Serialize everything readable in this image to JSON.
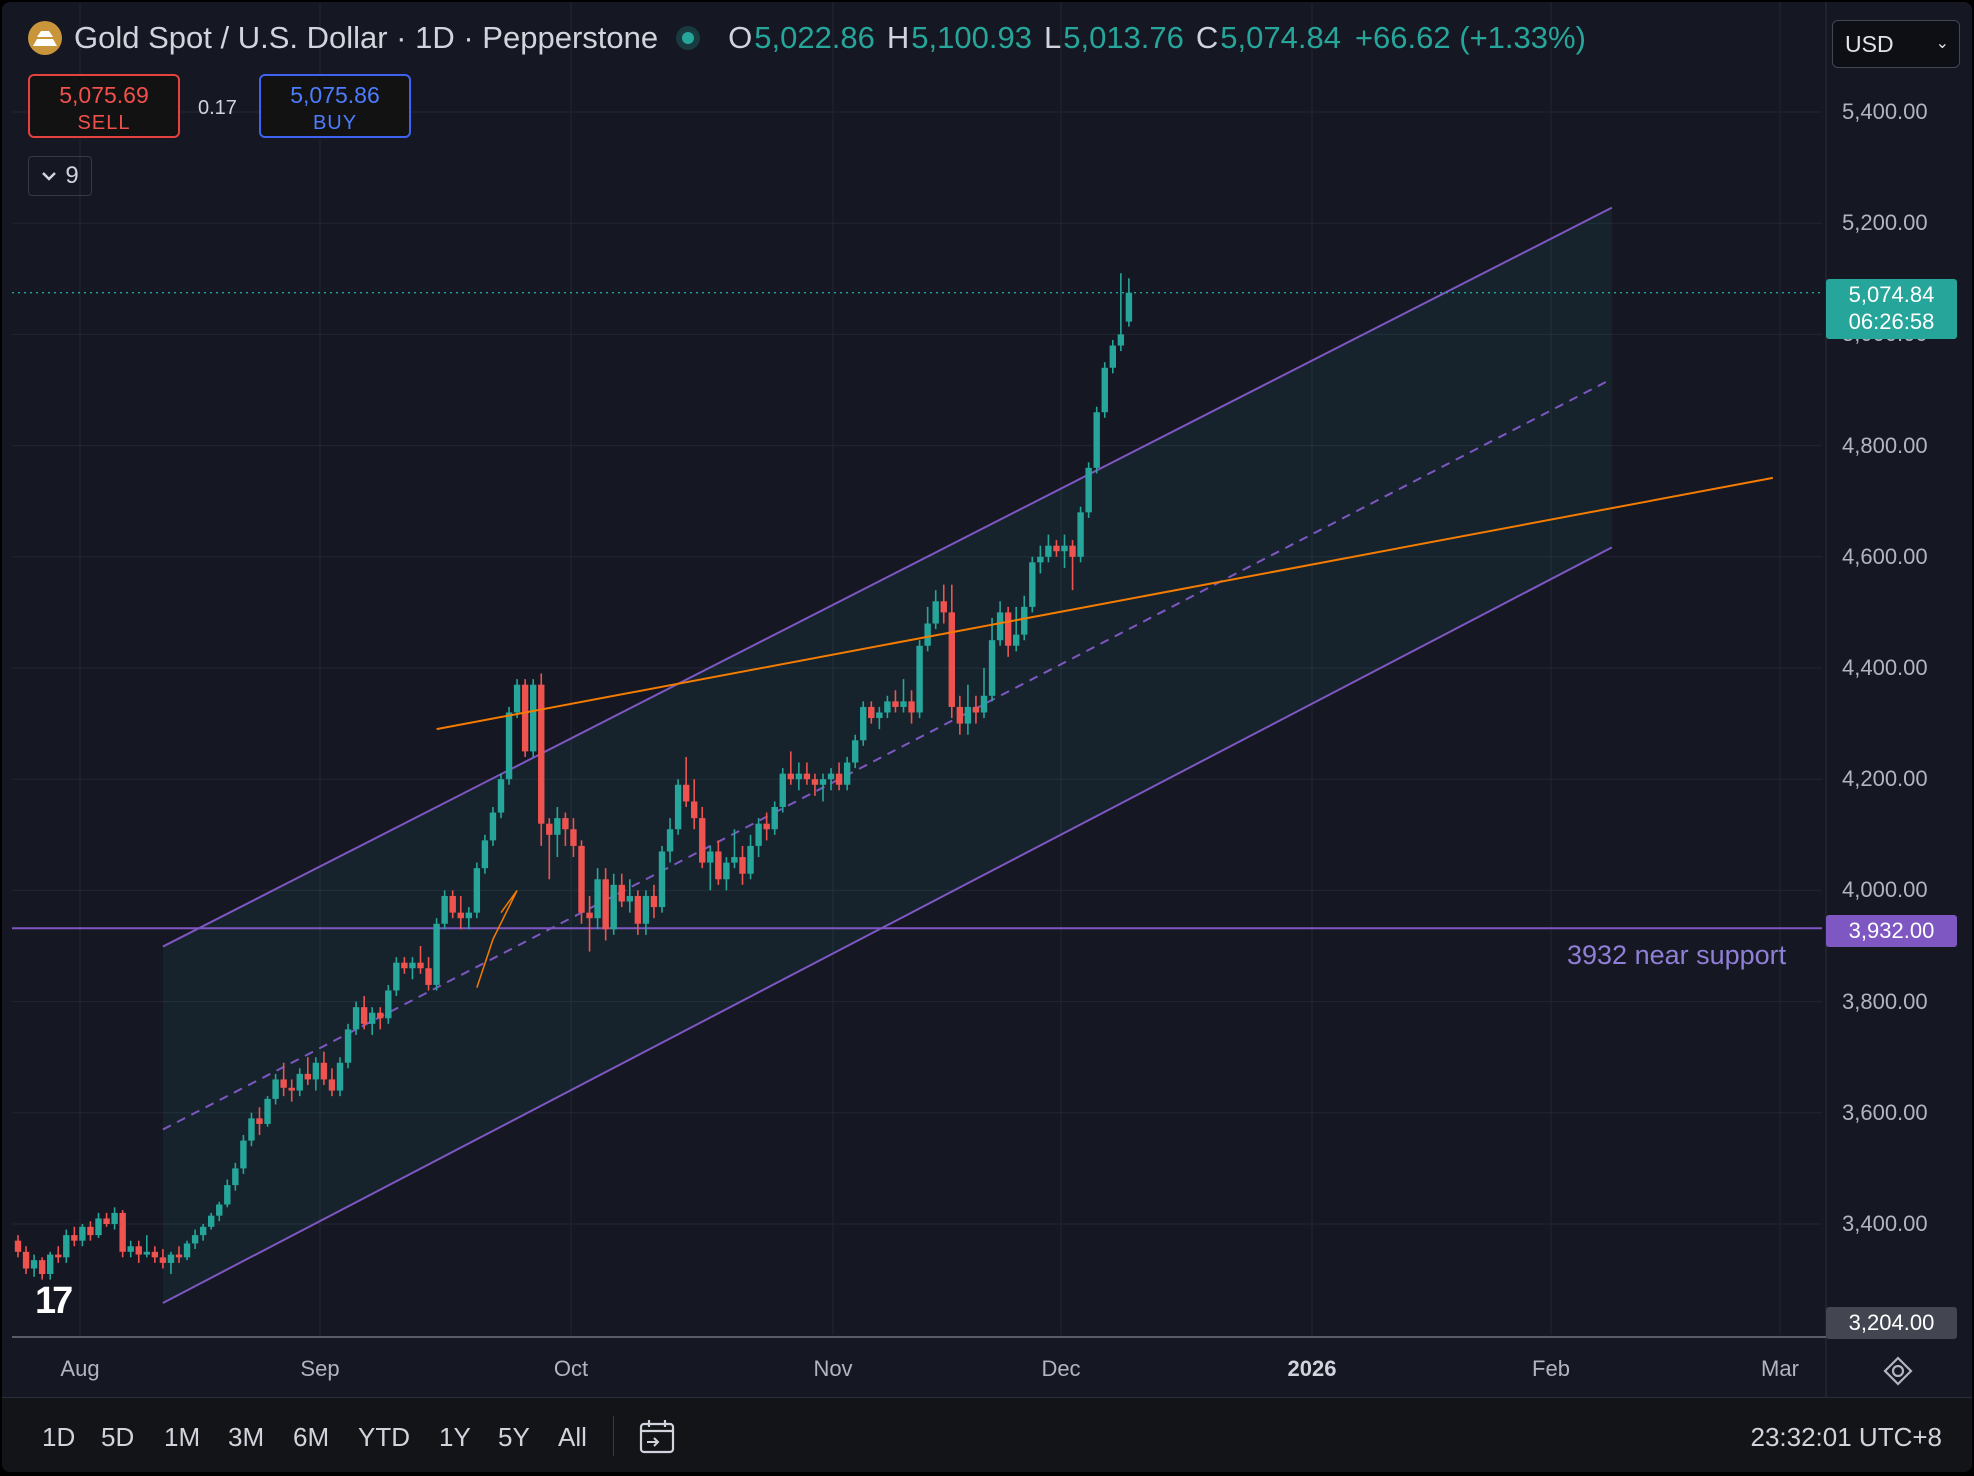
{
  "header": {
    "title": "Gold Spot / U.S. Dollar · 1D · Pepperstone",
    "open_label": "O",
    "open": "5,022.86",
    "high_label": "H",
    "high": "5,100.93",
    "low_label": "L",
    "low": "5,013.76",
    "close_label": "C",
    "close": "5,074.84",
    "change": "+66.62 (+1.33%)"
  },
  "trade": {
    "sell_price": "5,075.69",
    "sell_label": "SELL",
    "spread": "0.17",
    "buy_price": "5,075.86",
    "buy_label": "BUY"
  },
  "indicators_count": "9",
  "currency": "USD",
  "tags": {
    "last_price": "5,074.84",
    "countdown": "06:26:58",
    "support": "3,932.00",
    "low_visible": "3,204.00"
  },
  "support_note": "3932 near support",
  "timeframes": [
    "1D",
    "5D",
    "1M",
    "3M",
    "6M",
    "YTD",
    "1Y",
    "5Y",
    "All"
  ],
  "clock": "23:32:01 UTC+8",
  "colors": {
    "up": "#26a69a",
    "down": "#ef5350",
    "channel": "#7e57c2",
    "trendline": "#f57c00"
  },
  "chart_data": {
    "type": "candlestick",
    "y_ticks": [
      "5,400.00",
      "5,200.00",
      "5,000.00",
      "4,800.00",
      "4,600.00",
      "4,400.00",
      "4,200.00",
      "4,000.00",
      "3,800.00",
      "3,600.00",
      "3,400.00"
    ],
    "y_tick_values": [
      5400,
      5200,
      5000,
      4800,
      4600,
      4400,
      4200,
      4000,
      3800,
      3600,
      3400
    ],
    "x_ticks": [
      "Aug",
      "Sep",
      "Oct",
      "Nov",
      "Dec",
      "2026",
      "Feb",
      "Mar"
    ],
    "ylim": [
      3204,
      5440
    ],
    "support_level": 3932,
    "candles": [
      [
        3370,
        3380,
        3340,
        3350
      ],
      [
        3350,
        3360,
        3310,
        3320
      ],
      [
        3320,
        3345,
        3305,
        3335
      ],
      [
        3335,
        3340,
        3300,
        3310
      ],
      [
        3310,
        3350,
        3300,
        3345
      ],
      [
        3345,
        3360,
        3330,
        3340
      ],
      [
        3340,
        3390,
        3330,
        3380
      ],
      [
        3380,
        3395,
        3360,
        3370
      ],
      [
        3370,
        3400,
        3360,
        3395
      ],
      [
        3395,
        3405,
        3370,
        3380
      ],
      [
        3380,
        3420,
        3375,
        3410
      ],
      [
        3410,
        3420,
        3395,
        3400
      ],
      [
        3400,
        3430,
        3390,
        3420
      ],
      [
        3420,
        3425,
        3340,
        3350
      ],
      [
        3350,
        3370,
        3340,
        3360
      ],
      [
        3360,
        3370,
        3330,
        3345
      ],
      [
        3345,
        3380,
        3340,
        3350
      ],
      [
        3350,
        3360,
        3330,
        3340
      ],
      [
        3340,
        3355,
        3320,
        3330
      ],
      [
        3330,
        3350,
        3310,
        3345
      ],
      [
        3345,
        3360,
        3330,
        3340
      ],
      [
        3340,
        3370,
        3335,
        3365
      ],
      [
        3365,
        3390,
        3355,
        3380
      ],
      [
        3380,
        3400,
        3370,
        3395
      ],
      [
        3395,
        3420,
        3390,
        3415
      ],
      [
        3415,
        3440,
        3405,
        3435
      ],
      [
        3435,
        3480,
        3430,
        3470
      ],
      [
        3470,
        3510,
        3460,
        3500
      ],
      [
        3500,
        3560,
        3490,
        3550
      ],
      [
        3550,
        3600,
        3540,
        3590
      ],
      [
        3590,
        3610,
        3560,
        3580
      ],
      [
        3580,
        3630,
        3575,
        3625
      ],
      [
        3625,
        3670,
        3615,
        3660
      ],
      [
        3660,
        3690,
        3630,
        3645
      ],
      [
        3645,
        3660,
        3620,
        3640
      ],
      [
        3640,
        3680,
        3630,
        3670
      ],
      [
        3670,
        3700,
        3650,
        3660
      ],
      [
        3660,
        3700,
        3640,
        3690
      ],
      [
        3690,
        3710,
        3650,
        3660
      ],
      [
        3660,
        3680,
        3630,
        3640
      ],
      [
        3640,
        3700,
        3630,
        3690
      ],
      [
        3690,
        3760,
        3680,
        3750
      ],
      [
        3750,
        3800,
        3740,
        3790
      ],
      [
        3790,
        3810,
        3750,
        3760
      ],
      [
        3760,
        3790,
        3740,
        3780
      ],
      [
        3780,
        3790,
        3750,
        3770
      ],
      [
        3770,
        3830,
        3760,
        3820
      ],
      [
        3820,
        3880,
        3810,
        3870
      ],
      [
        3870,
        3880,
        3850,
        3860
      ],
      [
        3860,
        3880,
        3840,
        3870
      ],
      [
        3870,
        3900,
        3850,
        3860
      ],
      [
        3860,
        3880,
        3820,
        3830
      ],
      [
        3830,
        3950,
        3820,
        3940
      ],
      [
        3940,
        4000,
        3930,
        3990
      ],
      [
        3990,
        4000,
        3950,
        3960
      ],
      [
        3960,
        3990,
        3930,
        3950
      ],
      [
        3950,
        3970,
        3930,
        3960
      ],
      [
        3960,
        4050,
        3950,
        4040
      ],
      [
        4040,
        4100,
        4030,
        4090
      ],
      [
        4090,
        4150,
        4080,
        4140
      ],
      [
        4140,
        4210,
        4130,
        4200
      ],
      [
        4200,
        4330,
        4190,
        4320
      ],
      [
        4320,
        4380,
        4310,
        4370
      ],
      [
        4370,
        4380,
        4240,
        4250
      ],
      [
        4250,
        4380,
        4240,
        4370
      ],
      [
        4370,
        4390,
        4080,
        4120
      ],
      [
        4120,
        4130,
        4020,
        4100
      ],
      [
        4100,
        4150,
        4060,
        4130
      ],
      [
        4130,
        4140,
        4080,
        4110
      ],
      [
        4110,
        4130,
        4060,
        4080
      ],
      [
        4080,
        4090,
        3940,
        3960
      ],
      [
        3960,
        3990,
        3890,
        3950
      ],
      [
        3950,
        4040,
        3930,
        4020
      ],
      [
        4020,
        4040,
        3910,
        3930
      ],
      [
        3930,
        4030,
        3920,
        4010
      ],
      [
        4010,
        4030,
        3970,
        3980
      ],
      [
        3980,
        4020,
        3960,
        3990
      ],
      [
        3990,
        4000,
        3920,
        3940
      ],
      [
        3940,
        4000,
        3920,
        3990
      ],
      [
        3990,
        4010,
        3950,
        3970
      ],
      [
        3970,
        4080,
        3960,
        4070
      ],
      [
        4070,
        4130,
        4050,
        4110
      ],
      [
        4110,
        4200,
        4100,
        4190
      ],
      [
        4190,
        4240,
        4150,
        4160
      ],
      [
        4160,
        4200,
        4110,
        4130
      ],
      [
        4130,
        4150,
        4040,
        4050
      ],
      [
        4050,
        4080,
        4000,
        4070
      ],
      [
        4070,
        4090,
        4010,
        4020
      ],
      [
        4020,
        4060,
        4000,
        4050
      ],
      [
        4050,
        4110,
        4040,
        4060
      ],
      [
        4060,
        4080,
        4010,
        4030
      ],
      [
        4030,
        4100,
        4020,
        4080
      ],
      [
        4080,
        4130,
        4060,
        4120
      ],
      [
        4120,
        4140,
        4090,
        4110
      ],
      [
        4110,
        4160,
        4100,
        4150
      ],
      [
        4150,
        4220,
        4140,
        4210
      ],
      [
        4210,
        4250,
        4190,
        4200
      ],
      [
        4200,
        4230,
        4180,
        4210
      ],
      [
        4210,
        4230,
        4190,
        4200
      ],
      [
        4200,
        4210,
        4170,
        4190
      ],
      [
        4190,
        4210,
        4160,
        4200
      ],
      [
        4200,
        4220,
        4180,
        4210
      ],
      [
        4210,
        4230,
        4180,
        4190
      ],
      [
        4190,
        4240,
        4180,
        4230
      ],
      [
        4230,
        4280,
        4220,
        4270
      ],
      [
        4270,
        4340,
        4260,
        4330
      ],
      [
        4330,
        4340,
        4300,
        4310
      ],
      [
        4310,
        4330,
        4290,
        4320
      ],
      [
        4320,
        4350,
        4310,
        4340
      ],
      [
        4340,
        4360,
        4320,
        4330
      ],
      [
        4330,
        4380,
        4320,
        4340
      ],
      [
        4340,
        4360,
        4300,
        4320
      ],
      [
        4320,
        4450,
        4310,
        4440
      ],
      [
        4440,
        4510,
        4430,
        4480
      ],
      [
        4480,
        4540,
        4470,
        4520
      ],
      [
        4520,
        4550,
        4480,
        4500
      ],
      [
        4500,
        4550,
        4310,
        4330
      ],
      [
        4330,
        4350,
        4280,
        4300
      ],
      [
        4300,
        4370,
        4280,
        4330
      ],
      [
        4330,
        4350,
        4300,
        4320
      ],
      [
        4320,
        4400,
        4310,
        4350
      ],
      [
        4350,
        4490,
        4340,
        4450
      ],
      [
        4450,
        4520,
        4440,
        4500
      ],
      [
        4500,
        4510,
        4420,
        4440
      ],
      [
        4440,
        4510,
        4430,
        4460
      ],
      [
        4460,
        4530,
        4450,
        4510
      ],
      [
        4510,
        4600,
        4500,
        4590
      ],
      [
        4590,
        4620,
        4570,
        4600
      ],
      [
        4600,
        4640,
        4590,
        4620
      ],
      [
        4620,
        4630,
        4600,
        4610
      ],
      [
        4610,
        4640,
        4580,
        4620
      ],
      [
        4620,
        4630,
        4540,
        4600
      ],
      [
        4600,
        4690,
        4590,
        4680
      ],
      [
        4680,
        4770,
        4670,
        4760
      ],
      [
        4760,
        4870,
        4750,
        4860
      ],
      [
        4860,
        4950,
        4850,
        4940
      ],
      [
        4940,
        4990,
        4930,
        4980
      ],
      [
        4980,
        5110,
        4970,
        5000
      ],
      [
        5023,
        5101,
        5014,
        5075
      ]
    ],
    "upper_channel": [
      [
        0,
        3899
      ],
      [
        180,
        5228
      ]
    ],
    "lower_channel": [
      [
        0,
        3258
      ],
      [
        180,
        4617
      ]
    ],
    "mid_channel": [
      [
        0,
        3570
      ],
      [
        180,
        4920
      ]
    ],
    "trendline": [
      [
        34,
        4290
      ],
      [
        200,
        4742
      ]
    ]
  }
}
